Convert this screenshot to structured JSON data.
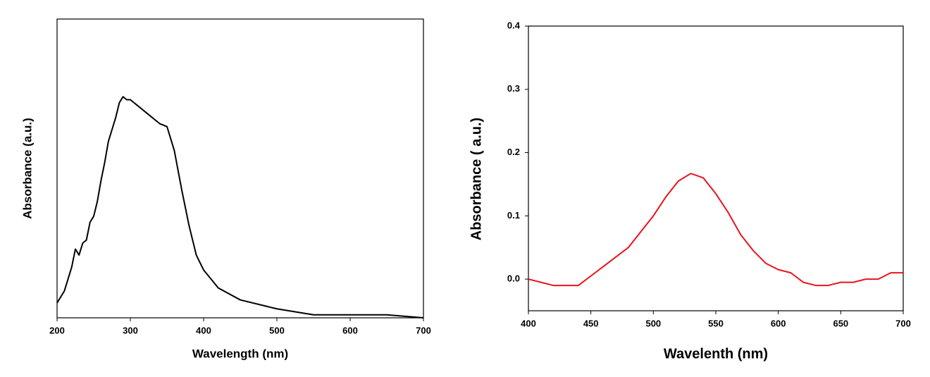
{
  "chart_data": [
    {
      "type": "line",
      "xlabel": "Wavelength (nm)",
      "ylabel": "Absorbance (a.u.)",
      "xlim": [
        200,
        700
      ],
      "xticks": [
        200,
        300,
        400,
        500,
        600,
        700
      ],
      "ylim": [
        0,
        1
      ],
      "series": [
        {
          "color": "#000000",
          "x": [
            200,
            210,
            220,
            225,
            230,
            235,
            240,
            245,
            250,
            255,
            260,
            265,
            270,
            275,
            280,
            285,
            290,
            295,
            300,
            305,
            310,
            320,
            330,
            340,
            350,
            360,
            370,
            380,
            390,
            400,
            420,
            450,
            500,
            550,
            600,
            650,
            700
          ],
          "values": [
            0.05,
            0.09,
            0.17,
            0.23,
            0.21,
            0.25,
            0.26,
            0.32,
            0.34,
            0.39,
            0.46,
            0.52,
            0.59,
            0.63,
            0.67,
            0.72,
            0.74,
            0.73,
            0.73,
            0.72,
            0.71,
            0.69,
            0.67,
            0.65,
            0.64,
            0.56,
            0.43,
            0.31,
            0.21,
            0.16,
            0.1,
            0.06,
            0.03,
            0.01,
            0.01,
            0.01,
            0
          ]
        }
      ]
    },
    {
      "type": "line",
      "xlabel": "Wavelenth (nm)",
      "ylabel": "Absorbance ( a.u.)",
      "xlim": [
        400,
        700
      ],
      "xticks": [
        400,
        450,
        500,
        550,
        600,
        650,
        700
      ],
      "ylim": [
        -0.05,
        0.4
      ],
      "yticks": [
        {
          "value": 0,
          "label": "0.0"
        },
        0.1,
        0.2,
        0.3,
        0.4
      ],
      "series": [
        {
          "color": "#e8141c",
          "x": [
            400,
            410,
            420,
            430,
            440,
            450,
            460,
            470,
            480,
            490,
            500,
            510,
            520,
            530,
            540,
            550,
            560,
            570,
            580,
            590,
            600,
            610,
            620,
            630,
            640,
            650,
            660,
            670,
            680,
            690,
            700
          ],
          "values": [
            0,
            -0.005,
            -0.01,
            -0.01,
            -0.01,
            0.005,
            0.02,
            0.035,
            0.05,
            0.075,
            0.1,
            0.13,
            0.155,
            0.167,
            0.16,
            0.135,
            0.105,
            0.07,
            0.045,
            0.025,
            0.015,
            0.01,
            -0.005,
            -0.01,
            -0.01,
            -0.005,
            -0.005,
            0,
            0,
            0.01,
            0.01
          ]
        }
      ]
    }
  ]
}
